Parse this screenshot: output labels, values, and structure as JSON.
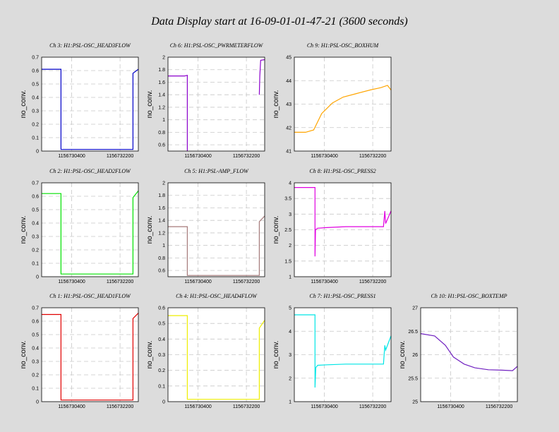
{
  "page": {
    "title": "Data Display start at 16-09-01-01-47-21 (3600 seconds)"
  },
  "chart_data": [
    {
      "type": "line",
      "title": "Ch 3: H1:PSL-OSC_HEAD3FLOW",
      "ylabel": "no_conv.",
      "ylim": [
        0,
        0.7
      ],
      "yticks": [
        "0",
        "0.1",
        "0.2",
        "0.3",
        "0.4",
        "0.5",
        "0.6",
        "0.7"
      ],
      "xticks": [
        "1156730400",
        "1156732200"
      ],
      "xlim": [
        1156729281,
        1156732881
      ],
      "grid": true,
      "color": "#0000c8",
      "series": [
        {
          "x": [
            1156729281,
            1156729900,
            1156730000,
            1156730000,
            1156731300,
            1156732500,
            1156732680,
            1156732680,
            1156732881
          ],
          "y": [
            0.61,
            0.61,
            0.61,
            0.012,
            0.012,
            0.012,
            0.012,
            0.58,
            0.61
          ]
        }
      ]
    },
    {
      "type": "line",
      "title": "Ch 6: H1:PSL-OSC_PWRMETERFLOW",
      "ylabel": "no_conv.",
      "ylim": [
        0.5,
        2
      ],
      "yticks": [
        "0.6",
        "0.8",
        "1",
        "1.2",
        "1.4",
        "1.6",
        "1.8",
        "2"
      ],
      "xticks": [
        "1156730400",
        "1156732200"
      ],
      "xlim": [
        1156729281,
        1156732881
      ],
      "grid": true,
      "color": "#8b00cc",
      "series": [
        {
          "x": [
            1156729281,
            1156729900,
            1156730000,
            1156730000
          ],
          "y": [
            1.7,
            1.7,
            1.71,
            0.5
          ]
        },
        {
          "x": [
            1156732680,
            1156732700,
            1156732730,
            1156732881
          ],
          "y": [
            1.4,
            1.7,
            1.95,
            1.96
          ]
        }
      ]
    },
    {
      "type": "line",
      "title": "Ch 9: H1:PSL-OSC_BOXHUM",
      "ylabel": "no_conv.",
      "ylim": [
        41,
        45
      ],
      "yticks": [
        "41",
        "42",
        "43",
        "44",
        "45"
      ],
      "xticks": [
        "1156730400",
        "1156732200"
      ],
      "xlim": [
        1156729281,
        1156732881
      ],
      "grid": true,
      "color": "#ffa500",
      "series": [
        {
          "x": [
            1156729281,
            1156729700,
            1156730000,
            1156730300,
            1156730700,
            1156731100,
            1156731600,
            1156732100,
            1156732500,
            1156732750,
            1156732881
          ],
          "y": [
            41.8,
            41.8,
            41.9,
            42.6,
            43.05,
            43.3,
            43.45,
            43.6,
            43.7,
            43.8,
            43.6
          ]
        }
      ]
    },
    {
      "type": "line",
      "title": "Ch 2: H1:PSL-OSC_HEAD2FLOW",
      "ylabel": "no_conv.",
      "ylim": [
        0,
        0.7
      ],
      "yticks": [
        "0",
        "0.1",
        "0.2",
        "0.3",
        "0.4",
        "0.5",
        "0.6",
        "0.7"
      ],
      "xticks": [
        "1156730400",
        "1156732200"
      ],
      "xlim": [
        1156729281,
        1156732881
      ],
      "grid": true,
      "color": "#00e000",
      "series": [
        {
          "x": [
            1156729281,
            1156729900,
            1156730000,
            1156730000,
            1156731300,
            1156732500,
            1156732680,
            1156732680,
            1156732881
          ],
          "y": [
            0.62,
            0.62,
            0.62,
            0.02,
            0.02,
            0.02,
            0.02,
            0.59,
            0.64
          ]
        }
      ]
    },
    {
      "type": "line",
      "title": "Ch 5: H1:PSL-AMP_FLOW",
      "ylabel": "no_conv.",
      "ylim": [
        0.5,
        2
      ],
      "yticks": [
        "0.6",
        "0.8",
        "1",
        "1.2",
        "1.4",
        "1.6",
        "1.8",
        "2"
      ],
      "xticks": [
        "1156730400",
        "1156732200"
      ],
      "xlim": [
        1156729281,
        1156732881
      ],
      "grid": true,
      "color": "#a57a7a",
      "series": [
        {
          "x": [
            1156729281,
            1156729900,
            1156730000,
            1156730000,
            1156731300,
            1156732500,
            1156732680,
            1156732680,
            1156732881
          ],
          "y": [
            1.3,
            1.3,
            1.3,
            0.52,
            0.52,
            0.52,
            0.52,
            1.38,
            1.47
          ]
        }
      ]
    },
    {
      "type": "line",
      "title": "Ch 8: H1:PSL-OSC_PRESS2",
      "ylabel": "no_conv.",
      "ylim": [
        1,
        4
      ],
      "yticks": [
        "1",
        "1.5",
        "2",
        "2.5",
        "3",
        "3.5",
        "4"
      ],
      "xticks": [
        "1156730400",
        "1156732200"
      ],
      "xlim": [
        1156729281,
        1156732881
      ],
      "grid": true,
      "color": "#e000e0",
      "series": [
        {
          "x": [
            1156729281,
            1156730000,
            1156730050,
            1156730050,
            1156730070,
            1156730150,
            1156730500,
            1156731200,
            1156732000,
            1156732600,
            1156732650,
            1156732680,
            1156732881
          ],
          "y": [
            3.85,
            3.85,
            3.85,
            1.65,
            2.5,
            2.55,
            2.57,
            2.6,
            2.6,
            2.6,
            3.1,
            2.7,
            3.1
          ]
        }
      ]
    },
    {
      "type": "line",
      "title": "Ch 1: H1:PSL-OSC_HEAD1FLOW",
      "ylabel": "no_conv.",
      "ylim": [
        0,
        0.7
      ],
      "yticks": [
        "0",
        "0.1",
        "0.2",
        "0.3",
        "0.4",
        "0.5",
        "0.6",
        "0.7"
      ],
      "xticks": [
        "1156730400",
        "1156732200"
      ],
      "xlim": [
        1156729281,
        1156732881
      ],
      "grid": true,
      "color": "#e00000",
      "series": [
        {
          "x": [
            1156729281,
            1156729900,
            1156730000,
            1156730000,
            1156731300,
            1156732500,
            1156732680,
            1156732680,
            1156732881
          ],
          "y": [
            0.65,
            0.65,
            0.65,
            0.012,
            0.012,
            0.012,
            0.012,
            0.62,
            0.66
          ]
        }
      ]
    },
    {
      "type": "line",
      "title": "Ch 4: H1:PSL-OSC_HEAD4FLOW",
      "ylabel": "no_conv.",
      "ylim": [
        0,
        0.6
      ],
      "yticks": [
        "0",
        "0.1",
        "0.2",
        "0.3",
        "0.4",
        "0.5",
        "0.6"
      ],
      "xticks": [
        "1156730400",
        "1156732200"
      ],
      "xlim": [
        1156729281,
        1156732881
      ],
      "grid": true,
      "color": "#eeee00",
      "series": [
        {
          "x": [
            1156729281,
            1156729900,
            1156730000,
            1156730000,
            1156731300,
            1156732500,
            1156732680,
            1156732680,
            1156732881
          ],
          "y": [
            0.55,
            0.55,
            0.55,
            0.015,
            0.015,
            0.015,
            0.015,
            0.47,
            0.52
          ]
        }
      ]
    },
    {
      "type": "line",
      "title": "Ch 7: H1:PSL-OSC_PRESS1",
      "ylabel": "no_conv.",
      "ylim": [
        1,
        5
      ],
      "yticks": [
        "1",
        "2",
        "3",
        "4",
        "5"
      ],
      "xticks": [
        "1156730400",
        "1156732200"
      ],
      "xlim": [
        1156729281,
        1156732881
      ],
      "grid": true,
      "color": "#00e5e5",
      "series": [
        {
          "x": [
            1156729281,
            1156730000,
            1156730050,
            1156730050,
            1156730080,
            1156730150,
            1156730500,
            1156731200,
            1156732000,
            1156732600,
            1156732650,
            1156732680,
            1156732881
          ],
          "y": [
            4.7,
            4.7,
            4.7,
            1.6,
            2.45,
            2.55,
            2.57,
            2.6,
            2.6,
            2.6,
            3.4,
            3.2,
            3.8
          ]
        }
      ]
    },
    {
      "type": "line",
      "title": "Ch 10: H1:PSL-OSC_BOXTEMP",
      "ylabel": "no_conv.",
      "ylim": [
        25,
        27
      ],
      "yticks": [
        "25",
        "25.5",
        "26",
        "26.5",
        "27"
      ],
      "xticks": [
        "1156730400",
        "1156732200"
      ],
      "xlim": [
        1156729281,
        1156732881
      ],
      "grid": true,
      "color": "#7020c0",
      "series": [
        {
          "x": [
            1156729281,
            1156729800,
            1156730200,
            1156730500,
            1156730900,
            1156731300,
            1156731800,
            1156732300,
            1156732700,
            1156732881
          ],
          "y": [
            26.45,
            26.4,
            26.2,
            25.95,
            25.8,
            25.72,
            25.68,
            25.67,
            25.66,
            25.75
          ]
        }
      ]
    }
  ]
}
